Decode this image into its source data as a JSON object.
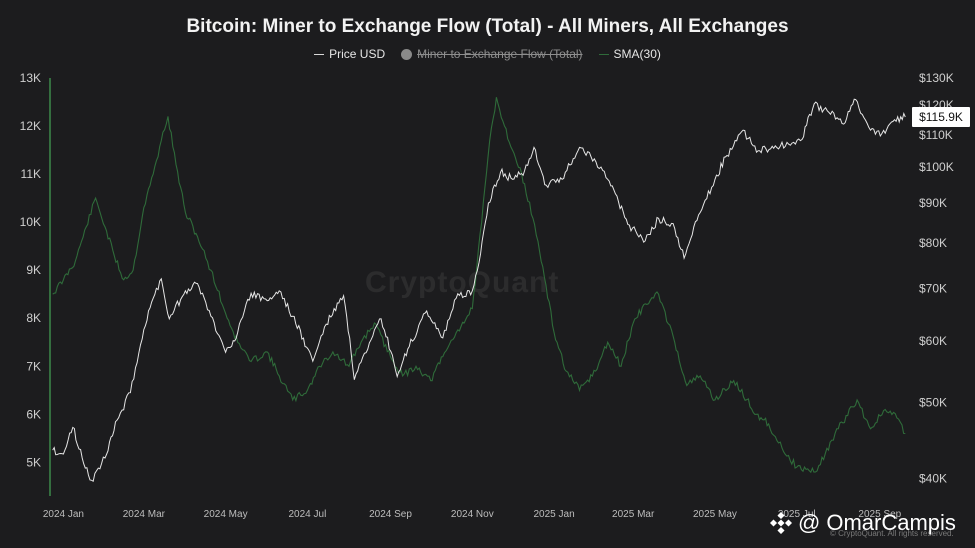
{
  "title": "Bitcoin: Miner to Exchange Flow (Total) - All Miners, All Exchanges",
  "legend": {
    "price_label": "Price USD",
    "flow_label": "Miner to Exchange Flow (Total)",
    "sma_label": "SMA(30)"
  },
  "watermark": "CryptoQuant",
  "copyright": "© CryptoQuant. All rights reserved.",
  "handle": {
    "at": "@",
    "name": "OmarCampis",
    "icon": "binance-logo-icon"
  },
  "colors": {
    "background": "#1c1c1e",
    "price": "#e6e6e6",
    "sma": "#2f6b3a",
    "axis_line": "#3d8a4a"
  },
  "chart_data": {
    "type": "line",
    "title": "Bitcoin: Miner to Exchange Flow (Total) - All Miners, All Exchanges",
    "x_ticks": [
      "2024 Jan",
      "2024 Mar",
      "2024 May",
      "2024 Jul",
      "2024 Sep",
      "2024 Nov",
      "2025 Jan",
      "2025 Mar",
      "2025 May",
      "2025 Jul",
      "2025 Sep"
    ],
    "x_range": [
      "2023-12-22",
      "2025-09-22"
    ],
    "left_axis": {
      "ticks": [
        "5K",
        "6K",
        "7K",
        "8K",
        "9K",
        "10K",
        "11K",
        "12K",
        "13K"
      ],
      "range": [
        4300,
        13000
      ]
    },
    "right_axis": {
      "ticks": [
        "$40K",
        "$50K",
        "$60K",
        "$70K",
        "$80K",
        "$90K",
        "$100K",
        "$110K",
        "$120K",
        "$130K"
      ],
      "range": [
        38000,
        130000
      ],
      "scale": "log"
    },
    "price_label": "$115.9K",
    "series": [
      {
        "name": "SMA(30)",
        "axis": "left",
        "points": [
          [
            "2023-12-24",
            8500
          ],
          [
            "2024-01-01",
            8800
          ],
          [
            "2024-01-10",
            9200
          ],
          [
            "2024-01-18",
            9900
          ],
          [
            "2024-01-25",
            10500
          ],
          [
            "2024-02-01",
            9900
          ],
          [
            "2024-02-08",
            9300
          ],
          [
            "2024-02-15",
            8800
          ],
          [
            "2024-02-22",
            9000
          ],
          [
            "2024-03-01",
            10300
          ],
          [
            "2024-03-08",
            11000
          ],
          [
            "2024-03-14",
            11700
          ],
          [
            "2024-03-19",
            12200
          ],
          [
            "2024-03-25",
            11200
          ],
          [
            "2024-04-01",
            10200
          ],
          [
            "2024-04-10",
            9700
          ],
          [
            "2024-04-20",
            9000
          ],
          [
            "2024-05-01",
            8100
          ],
          [
            "2024-05-10",
            7500
          ],
          [
            "2024-05-20",
            7100
          ],
          [
            "2024-06-01",
            7300
          ],
          [
            "2024-06-10",
            6800
          ],
          [
            "2024-06-20",
            6300
          ],
          [
            "2024-07-01",
            6500
          ],
          [
            "2024-07-10",
            7000
          ],
          [
            "2024-07-20",
            7300
          ],
          [
            "2024-08-01",
            7000
          ],
          [
            "2024-08-10",
            7500
          ],
          [
            "2024-08-20",
            7900
          ],
          [
            "2024-09-01",
            7200
          ],
          [
            "2024-09-10",
            6800
          ],
          [
            "2024-09-20",
            7000
          ],
          [
            "2024-10-01",
            6700
          ],
          [
            "2024-10-10",
            7200
          ],
          [
            "2024-10-20",
            7700
          ],
          [
            "2024-11-01",
            8200
          ],
          [
            "2024-11-08",
            10000
          ],
          [
            "2024-11-14",
            11700
          ],
          [
            "2024-11-19",
            12600
          ],
          [
            "2024-11-25",
            12000
          ],
          [
            "2024-12-01",
            11500
          ],
          [
            "2024-12-10",
            10800
          ],
          [
            "2024-12-20",
            9600
          ],
          [
            "2025-01-01",
            7700
          ],
          [
            "2025-01-10",
            6900
          ],
          [
            "2025-01-20",
            6500
          ],
          [
            "2025-02-01",
            6900
          ],
          [
            "2025-02-10",
            7500
          ],
          [
            "2025-02-20",
            7000
          ],
          [
            "2025-03-01",
            7900
          ],
          [
            "2025-03-10",
            8300
          ],
          [
            "2025-03-20",
            8500
          ],
          [
            "2025-04-01",
            7500
          ],
          [
            "2025-04-10",
            6600
          ],
          [
            "2025-04-20",
            6800
          ],
          [
            "2025-05-01",
            6300
          ],
          [
            "2025-05-15",
            6700
          ],
          [
            "2025-06-01",
            6000
          ],
          [
            "2025-06-10",
            5800
          ],
          [
            "2025-06-20",
            5300
          ],
          [
            "2025-07-01",
            4900
          ],
          [
            "2025-07-15",
            4800
          ],
          [
            "2025-08-01",
            5700
          ],
          [
            "2025-08-15",
            6300
          ],
          [
            "2025-08-25",
            5700
          ],
          [
            "2025-09-05",
            6100
          ],
          [
            "2025-09-15",
            5900
          ],
          [
            "2025-09-20",
            5600
          ]
        ]
      },
      {
        "name": "Price USD",
        "axis": "right",
        "points": [
          [
            "2023-12-24",
            43500
          ],
          [
            "2024-01-01",
            43000
          ],
          [
            "2024-01-08",
            46500
          ],
          [
            "2024-01-15",
            42500
          ],
          [
            "2024-01-22",
            39800
          ],
          [
            "2024-02-01",
            42500
          ],
          [
            "2024-02-10",
            47500
          ],
          [
            "2024-02-20",
            51500
          ],
          [
            "2024-03-01",
            62000
          ],
          [
            "2024-03-08",
            68000
          ],
          [
            "2024-03-14",
            72000
          ],
          [
            "2024-03-20",
            64000
          ],
          [
            "2024-04-01",
            69500
          ],
          [
            "2024-04-10",
            71000
          ],
          [
            "2024-04-20",
            64500
          ],
          [
            "2024-05-01",
            58000
          ],
          [
            "2024-05-10",
            61500
          ],
          [
            "2024-05-20",
            69000
          ],
          [
            "2024-06-01",
            67500
          ],
          [
            "2024-06-10",
            69500
          ],
          [
            "2024-06-20",
            64500
          ],
          [
            "2024-07-05",
            56500
          ],
          [
            "2024-07-15",
            63000
          ],
          [
            "2024-07-28",
            68500
          ],
          [
            "2024-08-05",
            53500
          ],
          [
            "2024-08-15",
            58500
          ],
          [
            "2024-08-25",
            64000
          ],
          [
            "2024-09-06",
            54000
          ],
          [
            "2024-09-15",
            59000
          ],
          [
            "2024-09-28",
            65500
          ],
          [
            "2024-10-10",
            60500
          ],
          [
            "2024-10-20",
            68000
          ],
          [
            "2024-11-01",
            69500
          ],
          [
            "2024-11-06",
            75500
          ],
          [
            "2024-11-13",
            90000
          ],
          [
            "2024-11-22",
            98500
          ],
          [
            "2024-12-01",
            96500
          ],
          [
            "2024-12-10",
            99000
          ],
          [
            "2024-12-17",
            106000
          ],
          [
            "2024-12-25",
            95000
          ],
          [
            "2025-01-07",
            96500
          ],
          [
            "2025-01-20",
            106000
          ],
          [
            "2025-01-31",
            102500
          ],
          [
            "2025-02-10",
            96500
          ],
          [
            "2025-02-25",
            84500
          ],
          [
            "2025-03-10",
            80500
          ],
          [
            "2025-03-20",
            86000
          ],
          [
            "2025-04-01",
            83500
          ],
          [
            "2025-04-08",
            76500
          ],
          [
            "2025-04-20",
            87500
          ],
          [
            "2025-05-01",
            96500
          ],
          [
            "2025-05-10",
            103500
          ],
          [
            "2025-05-22",
            111500
          ],
          [
            "2025-06-01",
            104500
          ],
          [
            "2025-06-15",
            106500
          ],
          [
            "2025-06-25",
            107000
          ],
          [
            "2025-07-05",
            108500
          ],
          [
            "2025-07-14",
            120500
          ],
          [
            "2025-07-25",
            117500
          ],
          [
            "2025-08-05",
            113500
          ],
          [
            "2025-08-14",
            122000
          ],
          [
            "2025-08-25",
            111500
          ],
          [
            "2025-09-05",
            110500
          ],
          [
            "2025-09-12",
            115000
          ],
          [
            "2025-09-20",
            115900
          ]
        ]
      }
    ],
    "disabled_series": "Miner to Exchange Flow (Total)",
    "grid": false,
    "legend_position": "top-center"
  }
}
